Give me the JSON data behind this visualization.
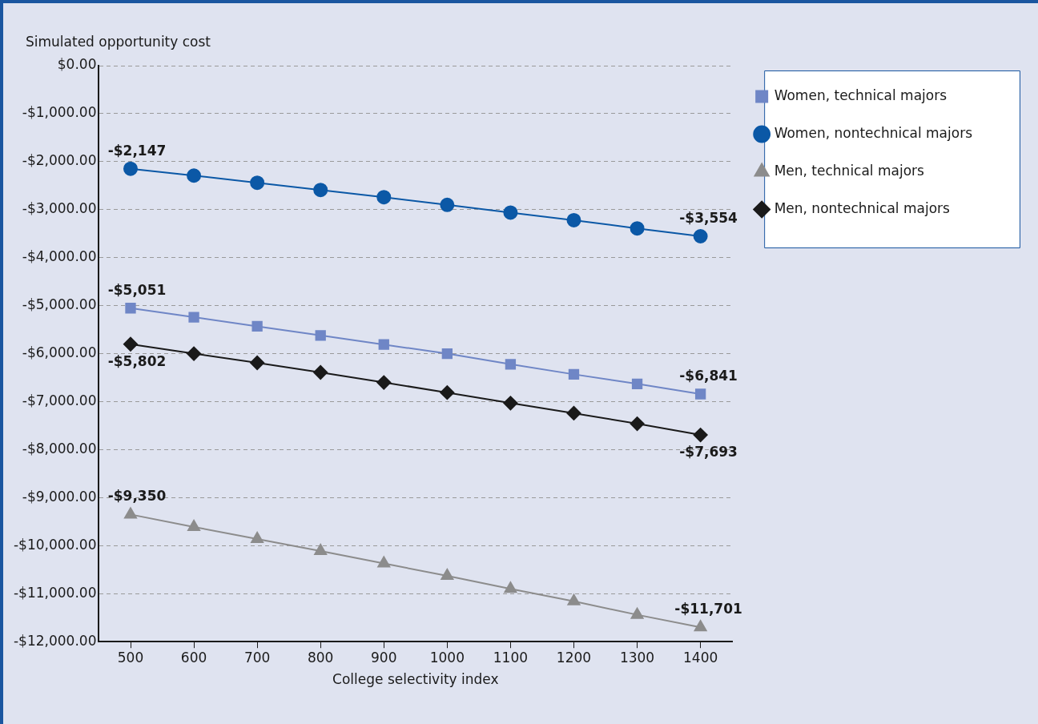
{
  "chart_data": {
    "type": "line",
    "xlabel": "College selectivity index",
    "ylabel": "Simulated opportunity cost",
    "x": [
      500,
      600,
      700,
      800,
      900,
      1000,
      1100,
      1200,
      1300,
      1400
    ],
    "xlim": [
      450,
      1450
    ],
    "xticks": [
      500,
      600,
      700,
      800,
      900,
      1000,
      1100,
      1200,
      1300,
      1400
    ],
    "ylim": [
      -12000,
      0
    ],
    "yticks": [
      {
        "value": 0,
        "label": "$0.00"
      },
      {
        "value": -1000,
        "label": "-$1,000.00"
      },
      {
        "value": -2000,
        "label": "-$2,000.00"
      },
      {
        "value": -3000,
        "label": "-$3,000.00"
      },
      {
        "value": -4000,
        "label": "-$4,000.00"
      },
      {
        "value": -5000,
        "label": "-$5,000.00"
      },
      {
        "value": -6000,
        "label": "-$6,000.00"
      },
      {
        "value": -7000,
        "label": "-$7,000.00"
      },
      {
        "value": -8000,
        "label": "-$8,000.00"
      },
      {
        "value": -9000,
        "label": "-$9,000.00"
      },
      {
        "value": -10000,
        "label": "-$10,000.00"
      },
      {
        "value": -11000,
        "label": "-$11,000.00"
      },
      {
        "value": -12000,
        "label": "-$12,000.00"
      }
    ],
    "grid": "y",
    "legend": "top right",
    "line_style": "solid",
    "series": [
      {
        "name": "Women, technical majors",
        "color": "#6f86c6",
        "marker": "square",
        "values": [
          -5051,
          -5240,
          -5430,
          -5620,
          -5810,
          -6000,
          -6220,
          -6430,
          -6630,
          -6841
        ],
        "value_labels": [
          "-$5,051",
          null,
          null,
          null,
          null,
          null,
          null,
          null,
          null,
          "-$6,841"
        ]
      },
      {
        "name": "Women, nontechnical majors",
        "color": "#0b58a6",
        "marker": "circle",
        "values": [
          -2147,
          -2290,
          -2440,
          -2590,
          -2740,
          -2900,
          -3060,
          -3220,
          -3390,
          -3554
        ],
        "value_labels": [
          "-$2,147",
          null,
          null,
          null,
          null,
          null,
          null,
          null,
          null,
          "-$3,554"
        ]
      },
      {
        "name": "Men, technical majors",
        "color": "#8c8c8c",
        "marker": "triangle",
        "values": [
          -9350,
          -9610,
          -9860,
          -10110,
          -10370,
          -10630,
          -10900,
          -11160,
          -11440,
          -11701
        ],
        "value_labels": [
          "-$9,350",
          null,
          null,
          null,
          null,
          null,
          null,
          null,
          null,
          "-$11,701"
        ]
      },
      {
        "name": "Men, nontechnical majors",
        "color": "#1a1a1a",
        "marker": "diamond",
        "values": [
          -5802,
          -6000,
          -6190,
          -6390,
          -6600,
          -6810,
          -7030,
          -7240,
          -7460,
          -7693
        ],
        "value_labels": [
          "-$5,802",
          null,
          null,
          null,
          null,
          null,
          null,
          null,
          null,
          "-$7,693"
        ]
      }
    ]
  }
}
